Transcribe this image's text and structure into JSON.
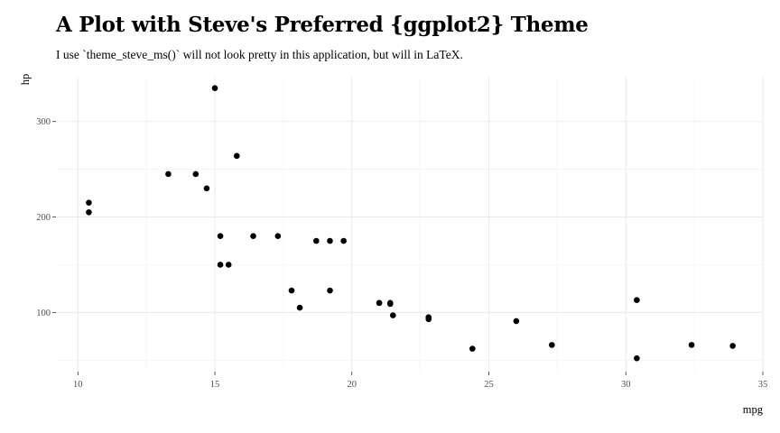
{
  "chart_data": {
    "type": "scatter",
    "title": "A Plot with Steve's Preferred {ggplot2} Theme",
    "subtitle": "I use `theme_steve_ms()` will not look pretty in this application, but will in LaTeX.",
    "xlabel": "mpg",
    "ylabel": "hp",
    "xlim": [
      9.2,
      35.0
    ],
    "ylim": [
      38,
      347
    ],
    "xticks": [
      "10",
      "15",
      "20",
      "25",
      "30",
      "35"
    ],
    "yticks": [
      "100",
      "200",
      "300"
    ],
    "grid": true,
    "points": [
      {
        "x": 21.0,
        "y": 110
      },
      {
        "x": 21.0,
        "y": 110
      },
      {
        "x": 22.8,
        "y": 93
      },
      {
        "x": 21.4,
        "y": 110
      },
      {
        "x": 18.7,
        "y": 175
      },
      {
        "x": 18.1,
        "y": 105
      },
      {
        "x": 14.3,
        "y": 245
      },
      {
        "x": 24.4,
        "y": 62
      },
      {
        "x": 22.8,
        "y": 95
      },
      {
        "x": 19.2,
        "y": 123
      },
      {
        "x": 17.8,
        "y": 123
      },
      {
        "x": 16.4,
        "y": 180
      },
      {
        "x": 17.3,
        "y": 180
      },
      {
        "x": 15.2,
        "y": 180
      },
      {
        "x": 10.4,
        "y": 205
      },
      {
        "x": 10.4,
        "y": 215
      },
      {
        "x": 14.7,
        "y": 230
      },
      {
        "x": 32.4,
        "y": 66
      },
      {
        "x": 30.4,
        "y": 52
      },
      {
        "x": 33.9,
        "y": 65
      },
      {
        "x": 21.5,
        "y": 97
      },
      {
        "x": 15.5,
        "y": 150
      },
      {
        "x": 15.2,
        "y": 150
      },
      {
        "x": 13.3,
        "y": 245
      },
      {
        "x": 19.2,
        "y": 175
      },
      {
        "x": 27.3,
        "y": 66
      },
      {
        "x": 26.0,
        "y": 91
      },
      {
        "x": 30.4,
        "y": 113
      },
      {
        "x": 15.8,
        "y": 264
      },
      {
        "x": 19.7,
        "y": 175
      },
      {
        "x": 15.0,
        "y": 335
      },
      {
        "x": 21.4,
        "y": 109
      }
    ]
  }
}
